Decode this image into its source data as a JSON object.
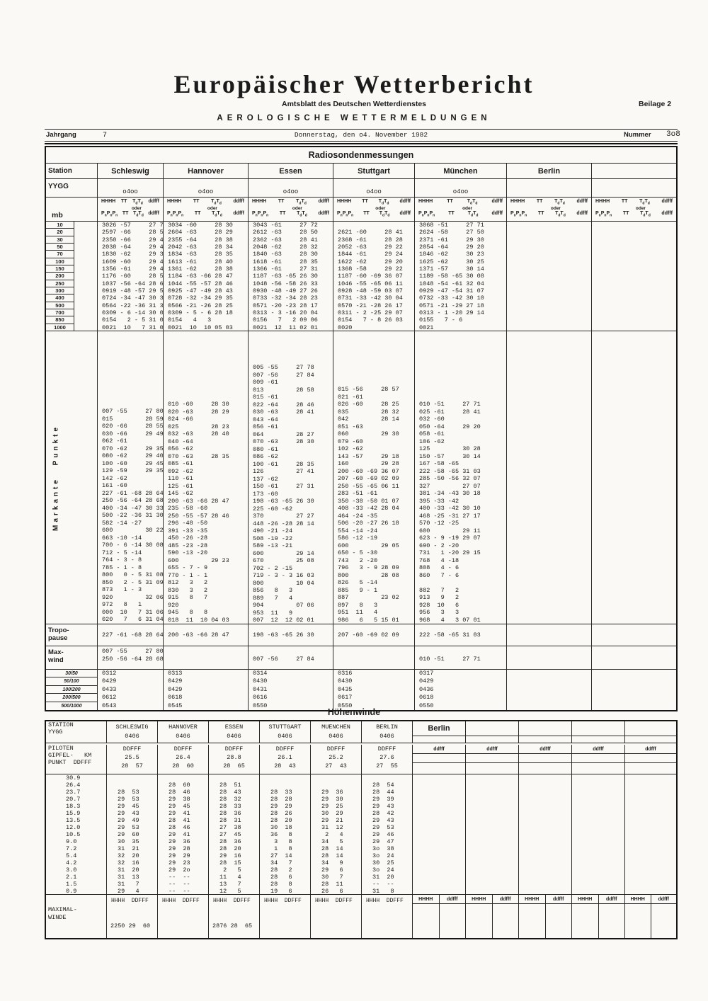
{
  "masthead": {
    "title": "Europäischer Wetterbericht",
    "subtitle": "Amtsblatt des Deutschen Wetterdienstes",
    "beilage": "Beilage 2",
    "series": "AEROLOGISCHE WETTERMELDUNGEN",
    "jahrgang_label": "Jahrgang",
    "jahrgang": "7",
    "date": "Donnerstag, den o4. November 1982",
    "nummer_label": "Nummer",
    "nummer": "3o8"
  },
  "radiosonde": {
    "title": "Radiosondenmessungen",
    "labels": {
      "station": "Station",
      "yygg": "YYGG",
      "mb": "mb",
      "markante": "Markante Punkte",
      "tropo1": "Tropo-",
      "tropo2": "pause",
      "max1": "Max-",
      "max2": "wind"
    },
    "colheader": {
      "row1": [
        "HHHH",
        "TT",
        "TdTd",
        "ddfff"
      ],
      "oder": "oder",
      "row2": [
        "PnPnPn",
        "TT",
        "TdTd",
        "ddfff"
      ]
    },
    "stations": [
      "Schleswig",
      "Hannover",
      "Essen",
      "Stuttgart",
      "München",
      "Berlin",
      ""
    ],
    "times": [
      "o4oo",
      "o4oo",
      "o4oo",
      "o4oo",
      "o4oo",
      "",
      ""
    ],
    "levels": [
      "10",
      "20",
      "30",
      "50",
      "70",
      "100",
      "150",
      "200",
      "250",
      "300",
      "400",
      "500",
      "700",
      "850",
      "1000"
    ],
    "standard": {
      "schleswig": [
        "3026 -57     27 73",
        "2597 -66     28 55",
        "2350 -66     29 49",
        "2038 -64     29 42",
        "1830 -62     29 35",
        "1609 -60     29 45",
        "1356 -61     29 42",
        "1176 -60     28 59",
        "1037 -56 -64 28 68",
        "0919 -48 -57 29 59",
        "0724 -34 -47 30 33",
        "0564 -22 -36 31 30",
        "0309 - 6 -14 30 08",
        "0154   2 - 5 31 09",
        "0021  10   7 31 06"
      ],
      "hannover": [
        "3034 -60     28 30",
        "2604 -63     28 29",
        "2355 -64     28 38",
        "2042 -63     28 34",
        "1834 -63     28 35",
        "1613 -61     28 40",
        "1361 -62     28 38",
        "1184 -63 -66 28 47",
        "1044 -55 -57 28 46",
        "0925 -47 -49 28 43",
        "0728 -32 -34 29 35",
        "0566 -21 -26 28 25",
        "0309 - 5 - 6 28 18",
        "0154   4   3",
        "0021  10  10 05 03"
      ],
      "essen": [
        "3043 -61     27 72",
        "2612 -63     28 50",
        "2362 -63     28 41",
        "2048 -62     28 32",
        "1840 -63     28 30",
        "1618 -61     28 35",
        "1366 -61     27 31",
        "1187 -63 -65 26 30",
        "1048 -56 -58 26 33",
        "0930 -48 -49 27 26",
        "0733 -32 -34 28 23",
        "0571 -20 -23 28 17",
        "0313 - 3 -16 20 04",
        "0156   7   2 09 06",
        "0021  12  11 02 01"
      ],
      "stuttgart": [
        "",
        "2621 -60     28 41",
        "2368 -61     28 28",
        "2052 -63     29 22",
        "1844 -61     29 24",
        "1622 -62     29 20",
        "1368 -58     29 22",
        "1187 -60 -69 36 07",
        "1046 -55 -65 06 11",
        "0928 -48 -59 03 07",
        "0731 -33 -42 30 04",
        "0570 -21 -28 26 17",
        "0311 - 2 -25 29 07",
        "0154   7 - 8 26 03",
        "0020"
      ],
      "muenchen": [
        "3068 -51     27 71",
        "2624 -58     27 50",
        "2371 -61     29 30",
        "2054 -64     29 20",
        "1846 -62     30 23",
        "1625 -62     30 25",
        "1371 -57     30 14",
        "1189 -58 -65 30 08",
        "1048 -54 -61 32 04",
        "0929 -47 -54 31 07",
        "0732 -33 -42 30 10",
        "0571 -21 -29 27 18",
        "0313 - 1 -20 29 14",
        "0155   7 - 6",
        "0021"
      ]
    },
    "markante": {
      "schleswig": [
        "007 -55     27 80",
        "015         28 59",
        "020 -66     28 55",
        "030 -66     29 49",
        "062 -61",
        "070 -62     29 35",
        "080 -62     29 40",
        "100 -60     29 45",
        "129 -59     29 35",
        "142 -62",
        "161 -60",
        "227 -61 -68 28 64",
        "250 -56 -64 28 68",
        "400 -34 -47 30 33",
        "500 -22 -36 31 30",
        "582 -14 -27",
        "600         30 22",
        "663 -10 -14",
        "700 - 6 -14 30 08",
        "712 - 5 -14",
        "764 - 3 - 8",
        "785 - 1 - 8",
        "800   0 - 5 31 08",
        "850   2 - 5 31 09",
        "873   1 - 3",
        "920         32 06",
        "972   8   1",
        "000  10   7 31 06",
        "020   7   6 31 04"
      ],
      "hannover": [
        "010 -60     28 30",
        "020 -63     28 29",
        "024 -66",
        "025         28 23",
        "032 -63     28 40",
        "040 -64",
        "056 -62",
        "070 -63     28 35",
        "085 -61",
        "092 -62",
        "110 -61",
        "125 -61",
        "145 -62",
        "200 -63 -66 28 47",
        "235 -58 -60",
        "250 -55 -57 28 46",
        "296 -48 -50",
        "391 -33 -35",
        "450 -26 -28",
        "485 -23 -28",
        "590 -13 -20",
        "600         29 23",
        "655 - 7 - 9",
        "770 - 1 - 1",
        "812   3   2",
        "830   3   2",
        "915   8   7",
        "920",
        "945   8   8",
        "018  11  10 04 03"
      ],
      "essen": [
        "005 -55     27 78",
        "007 -56     27 84",
        "009 -61",
        "013         28 58",
        "015 -61",
        "022 -64     28 46",
        "030 -63     28 41",
        "043 -64",
        "056 -61",
        "064         28 27",
        "070 -63     28 30",
        "080 -61",
        "086 -62",
        "100 -61     28 35",
        "126         27 41",
        "137 -62",
        "150 -61     27 31",
        "173 -60",
        "198 -63 -65 26 30",
        "225 -60 -62",
        "370         27 27",
        "448 -26 -28 28 14",
        "490 -21 -24",
        "508 -19 -22",
        "589 -13 -21",
        "600         29 14",
        "670         25 08",
        "702 - 2 -15",
        "719 - 3 - 3 16 03",
        "800         10 04",
        "856   8   3",
        "889   7   4",
        "904         07 06",
        "953  11   9",
        "007  12  12 02 01"
      ],
      "stuttgart": [
        "015 -56     28 57",
        "021 -61",
        "026 -60     28 25",
        "035         28 32",
        "042         28 14",
        "051 -63",
        "060         29 30",
        "079 -60",
        "102 -62",
        "143 -57     29 18",
        "160         29 28",
        "200 -60 -69 36 07",
        "207 -60 -69 02 09",
        "250 -55 -65 06 11",
        "283 -51 -61",
        "350 -38 -50 01 07",
        "408 -33 -42 28 04",
        "464 -24 -35",
        "506 -20 -27 26 18",
        "554 -14 -24",
        "586 -12 -19",
        "600         29 05",
        "650 - 5 -30",
        "743   2 -20",
        "796   3 - 9 28 09",
        "800         28 08",
        "826   5 -14",
        "885   9 - 1",
        "887         23 02",
        "897   8   3",
        "951  11   4",
        "986   6   5 15 01"
      ],
      "muenchen": [
        "010 -51     27 71",
        "025 -61     28 41",
        "032 -60",
        "050 -64     29 20",
        "058 -61",
        "106 -62",
        "125         30 28",
        "150 -57     30 14",
        "167 -58 -65",
        "222 -58 -65 31 03",
        "285 -50 -56 32 07",
        "327         27 07",
        "381 -34 -43 30 18",
        "395 -33 -42",
        "400 -33 -42 30 10",
        "468 -25 -31 27 17",
        "570 -12 -25",
        "600         29 11",
        "623 - 9 -19 29 07",
        "690 - 2 -20",
        "731   1 -20 29 15",
        "768   4 -18",
        "808   4 - 6",
        "860   7 - 6",
        "",
        "882   7   2",
        "913   9   2",
        "928  10   6",
        "956   3   3",
        "968   4   3 07 01"
      ]
    },
    "tropopause": [
      "227 -61 -68 28 64",
      "200 -63 -66 28 47",
      "198 -63 -65 26 30",
      "207 -60 -69 02 09",
      "222 -58 -65 31 03"
    ],
    "maxwind": {
      "schleswig": [
        "007 -55     27 80",
        "250 -56 -64 28 68"
      ],
      "hannover": [],
      "essen": [
        "",
        "007 -56     27 84"
      ],
      "stuttgart": [],
      "muenchen": [
        "",
        "010 -51     27 71"
      ]
    },
    "layers": {
      "labels": [
        "30/50",
        "50/100",
        "100/200",
        "200/500",
        "500/1000"
      ],
      "schleswig": [
        "0312",
        "0429",
        "0433",
        "0612",
        "0543"
      ],
      "hannover": [
        "0313",
        "0429",
        "0429",
        "0618",
        "0545"
      ],
      "essen": [
        "0314",
        "0430",
        "0431",
        "0616",
        "0550"
      ],
      "stuttgart": [
        "0316",
        "0430",
        "0435",
        "0617",
        "0550"
      ],
      "muenchen": [
        "0317",
        "0429",
        "0436",
        "0618",
        "0550"
      ]
    }
  },
  "hoehenwinde": {
    "title": "Höhenwinde",
    "labels": {
      "station": "STATION",
      "yygg": "YYGG",
      "pilot1": "PILOTEN",
      "pilot2": "GIPFEL-   KM",
      "pilot3": "PUNKT  DDFFF",
      "max1": "MAXIMAL-",
      "max2": "WINDE",
      "max_header": "HHHH  DDFFF"
    },
    "template": {
      "berlin": "Berlin",
      "ddfff": "ddfff",
      "hhhh": "HHHH"
    },
    "stations": [
      {
        "name": "SCHLESWIG",
        "time": "0406",
        "ddfff": "DDFFF",
        "gipfel": "25.5",
        "punkt": "28  57",
        "max": "2250 29  60"
      },
      {
        "name": "HANNOVER",
        "time": "0406",
        "ddfff": "DDFFF",
        "gipfel": "26.4",
        "punkt": "28  60",
        "max": ""
      },
      {
        "name": "ESSEN",
        "time": "0406",
        "ddfff": "DDFFF",
        "gipfel": "28.8",
        "punkt": "28  65",
        "max": "2876 28  65"
      },
      {
        "name": "STUTTGART",
        "time": "0406",
        "ddfff": "DDFFF",
        "gipfel": "26.1",
        "punkt": "28  43",
        "max": ""
      },
      {
        "name": "MUENCHEN",
        "time": "0406",
        "ddfff": "DDFFF",
        "gipfel": "25.2",
        "punkt": "27  43",
        "max": ""
      },
      {
        "name": "BERLIN",
        "time": "0406",
        "ddfff": "DDFFF",
        "gipfel": "27.6",
        "punkt": "27  55",
        "max": ""
      }
    ],
    "heights": [
      "30.9",
      "26.4",
      "23.7",
      "20.7",
      "18.3",
      "15.9",
      "13.5",
      "12.0",
      "10.5",
      "9.0",
      "7.2",
      "5.4",
      "4.2",
      "3.0",
      "2.1",
      "1.5",
      "0.9"
    ],
    "winds": {
      "schleswig": [
        "",
        "",
        "28  53",
        "29  53",
        "29  45",
        "29  43",
        "29  49",
        "29  53",
        "29  60",
        "30  35",
        "31  21",
        "32  20",
        "32  16",
        "31  20",
        "31  13",
        "31   7",
        "29   4"
      ],
      "hannover": [
        "",
        "28  60",
        "28  46",
        "29  38",
        "29  45",
        "29  41",
        "28  41",
        "28  46",
        "29  41",
        "29  36",
        "29  28",
        "29  29",
        "29  23",
        "29  2o",
        "--  --",
        "--  --",
        "--  --"
      ],
      "essen": [
        "",
        "28  51",
        "28  43",
        "28  32",
        "28  33",
        "28  36",
        "28  31",
        "27  38",
        "27  45",
        "28  36",
        "28  20",
        "29  16",
        "28  15",
        " 2   5",
        "11   4",
        "13   7",
        "12   5"
      ],
      "stuttgart": [
        "",
        "",
        "28  33",
        "28  28",
        "29  29",
        "28  26",
        "28  20",
        "30  18",
        "36   8",
        " 3   8",
        " 1   8",
        "27  14",
        "34   7",
        "28   2",
        "28   6",
        "28   8",
        "19   6"
      ],
      "muenchen": [
        "",
        "",
        "29  36",
        "29  30",
        "29  25",
        "30  29",
        "29  21",
        "31  12",
        " 2   4",
        "34   5",
        "28  14",
        "28  14",
        "34   9",
        "29   6",
        "30   7",
        "28  11",
        "26   6"
      ],
      "berlin": [
        "",
        "28  54",
        "28  44",
        "29  39",
        "29  43",
        "28  42",
        "29  43",
        "29  53",
        "29  46",
        "29  47",
        "3o  38",
        "3o  24",
        "30  25",
        "3o  24",
        "31  20",
        "--  --",
        "31   8"
      ]
    }
  }
}
